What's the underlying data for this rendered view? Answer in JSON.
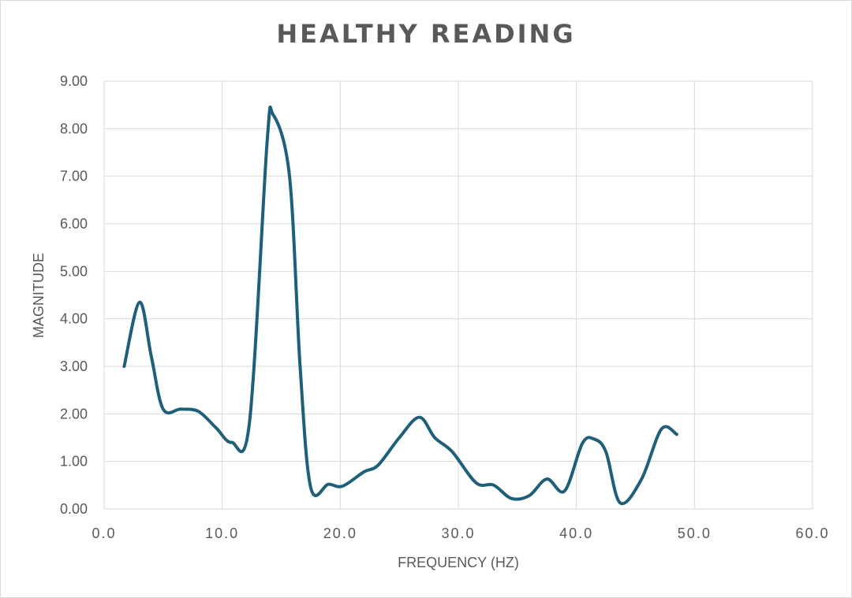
{
  "chart_data": {
    "type": "line",
    "title": "HEALTHY READING",
    "xlabel": "FREQUENCY (HZ)",
    "ylabel": "MAGNITUDE",
    "xlim": [
      0,
      60
    ],
    "ylim": [
      0,
      9
    ],
    "x_ticks": [
      "0.0",
      "10.0",
      "20.0",
      "30.0",
      "40.0",
      "50.0",
      "60.0"
    ],
    "y_ticks": [
      "0.00",
      "1.00",
      "2.00",
      "3.00",
      "4.00",
      "5.00",
      "6.00",
      "7.00",
      "8.00",
      "9.00"
    ],
    "grid": true,
    "line_color": "#1f5f7a",
    "series": [
      {
        "x": [
          1.7,
          3.0,
          4.0,
          5.0,
          6.5,
          8.0,
          9.5,
          10.8,
          12.3,
          13.8,
          14.3,
          15.7,
          16.6,
          17.5,
          19.0,
          20.2,
          22.0,
          23.2,
          25.0,
          26.7,
          28.0,
          29.5,
          31.5,
          33.0,
          34.5,
          36.0,
          37.5,
          39.0,
          40.5,
          41.5,
          42.5,
          43.7,
          45.5,
          47.2,
          48.5
        ],
        "y": [
          3.0,
          4.35,
          3.2,
          2.1,
          2.1,
          2.05,
          1.7,
          1.4,
          1.8,
          7.7,
          8.3,
          7.0,
          3.0,
          0.45,
          0.52,
          0.48,
          0.78,
          0.92,
          1.5,
          1.93,
          1.5,
          1.2,
          0.55,
          0.5,
          0.22,
          0.28,
          0.63,
          0.38,
          1.38,
          1.47,
          1.2,
          0.13,
          0.62,
          1.68,
          1.57
        ]
      }
    ]
  }
}
